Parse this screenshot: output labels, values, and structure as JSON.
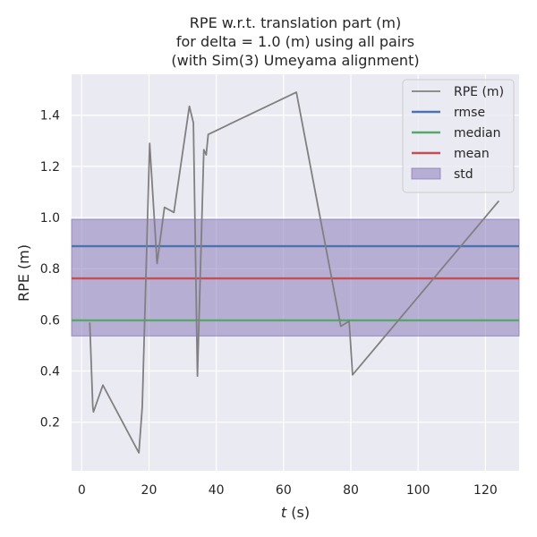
{
  "chart_data": {
    "type": "line",
    "title": [
      "RPE w.r.t. translation part (m)",
      "for delta = 1.0 (m) using all pairs",
      "(with Sim(3) Umeyama alignment)"
    ],
    "xlabel_var": "t",
    "xlabel_unit": " (s)",
    "ylabel": "RPE (m)",
    "xlim": [
      -3,
      130
    ],
    "ylim": [
      0.01,
      1.56
    ],
    "xticks": [
      0,
      20,
      40,
      60,
      80,
      100,
      120
    ],
    "yticks": [
      0.2,
      0.4,
      0.6,
      0.8,
      1.0,
      1.2,
      1.4
    ],
    "ytick_labels": [
      "0.2",
      "0.4",
      "0.6",
      "0.8",
      "1.0",
      "1.2",
      "1.4"
    ],
    "grid": true,
    "legend_position": "top-right",
    "series": [
      {
        "name": "RPE (m)",
        "color": "#808080",
        "x": [
          2.4,
          3.3,
          3.5,
          6.3,
          17.0,
          18.0,
          20.2,
          22.4,
          24.6,
          27.4,
          32.0,
          33.2,
          34.4,
          36.3,
          37.0,
          37.6,
          63.8,
          77.0,
          79.5,
          80.5,
          124.0
        ],
        "y": [
          0.59,
          0.26,
          0.24,
          0.345,
          0.08,
          0.26,
          1.29,
          0.82,
          1.04,
          1.02,
          1.435,
          1.37,
          0.38,
          1.265,
          1.245,
          1.325,
          1.49,
          0.575,
          0.595,
          0.385,
          1.065
        ]
      }
    ],
    "reference_lines": [
      {
        "name": "rmse",
        "value": 0.888,
        "color": "#4c72b0"
      },
      {
        "name": "median",
        "value": 0.598,
        "color": "#55a868"
      },
      {
        "name": "mean",
        "value": 0.762,
        "color": "#c44e52"
      }
    ],
    "std_band": {
      "name": "std",
      "lower": 0.537,
      "upper": 0.993,
      "color": "#8172b3"
    }
  }
}
